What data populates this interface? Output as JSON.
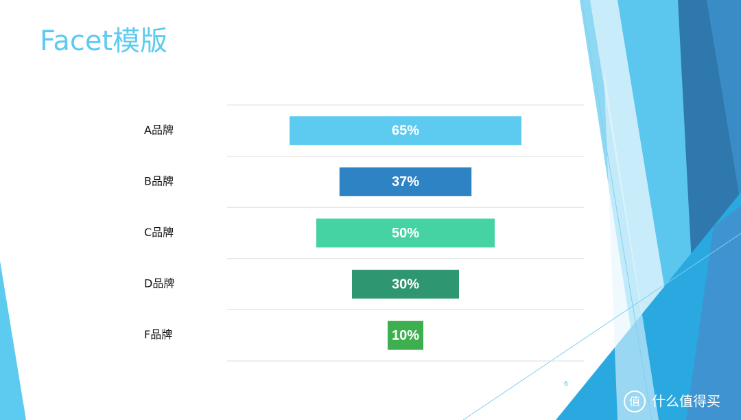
{
  "chart_data": {
    "type": "funnel",
    "title": "Facet模版",
    "categories": [
      "A品牌",
      "B品牌",
      "C品牌",
      "D品牌",
      "F品牌"
    ],
    "values": [
      65,
      37,
      50,
      30,
      10
    ],
    "value_labels": [
      "65%",
      "37%",
      "50%",
      "30%",
      "10%"
    ],
    "colors": [
      "#5ccbef",
      "#2e83c5",
      "#45d3a4",
      "#2e9670",
      "#3daf4e"
    ],
    "xlim": [
      0,
      100
    ]
  },
  "page_number": "6",
  "watermark": {
    "icon": "值",
    "text": "什么值得买"
  }
}
